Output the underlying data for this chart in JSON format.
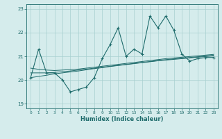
{
  "xlabel": "Humidex (Indice chaleur)",
  "ylabel": "",
  "bg_color": "#d5ecec",
  "grid_color": "#a8d0d0",
  "line_color": "#1e6b6b",
  "xlim": [
    -0.5,
    23.5
  ],
  "ylim": [
    18.8,
    23.2
  ],
  "yticks": [
    19,
    20,
    21,
    22,
    23
  ],
  "xticks": [
    0,
    1,
    2,
    3,
    4,
    5,
    6,
    7,
    8,
    9,
    10,
    11,
    12,
    13,
    14,
    15,
    16,
    17,
    18,
    19,
    20,
    21,
    22,
    23
  ],
  "main_y": [
    20.1,
    21.3,
    20.3,
    20.3,
    20.0,
    19.5,
    19.6,
    19.7,
    20.1,
    20.9,
    21.5,
    22.2,
    21.0,
    21.3,
    21.1,
    22.7,
    22.2,
    22.7,
    22.1,
    21.1,
    20.8,
    20.9,
    20.95,
    20.95
  ],
  "reg_lines": [
    [
      20.5,
      20.45,
      20.42,
      20.4,
      20.42,
      20.44,
      20.46,
      20.5,
      20.54,
      20.58,
      20.62,
      20.66,
      20.7,
      20.74,
      20.78,
      20.82,
      20.86,
      20.9,
      20.93,
      20.96,
      20.99,
      21.02,
      21.05,
      21.08
    ],
    [
      20.3,
      20.3,
      20.3,
      20.32,
      20.35,
      20.38,
      20.42,
      20.46,
      20.5,
      20.54,
      20.58,
      20.62,
      20.66,
      20.7,
      20.74,
      20.78,
      20.82,
      20.86,
      20.89,
      20.92,
      20.95,
      20.98,
      21.01,
      21.04
    ],
    [
      20.1,
      20.15,
      20.2,
      20.26,
      20.3,
      20.34,
      20.38,
      20.43,
      20.48,
      20.52,
      20.57,
      20.61,
      20.65,
      20.69,
      20.73,
      20.77,
      20.81,
      20.84,
      20.87,
      20.9,
      20.93,
      20.96,
      20.99,
      21.02
    ]
  ]
}
